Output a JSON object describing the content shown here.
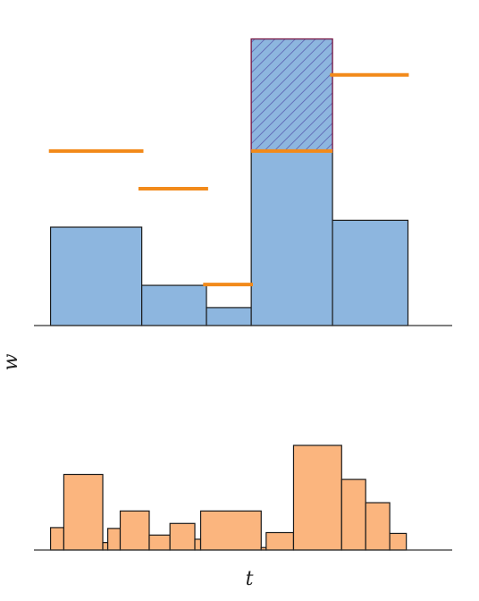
{
  "colors": {
    "top_bar_fill": "#8db6df",
    "hatch": "#5a5fb0",
    "hatch_border": "#7a1f4a",
    "level_line": "#f28a1a",
    "bottom_bar_fill": "#fbb57e",
    "edge": "#1a1a1a",
    "axis": "#333333"
  },
  "chart_data": [
    {
      "type": "bar",
      "variable_width": true,
      "ylabel": "w",
      "xlim": [
        0,
        500
      ],
      "ylim": [
        0,
        345
      ],
      "bars": [
        {
          "x0": 20,
          "x1": 130,
          "value": 115
        },
        {
          "x0": 130,
          "x1": 208,
          "value": 47
        },
        {
          "x0": 208,
          "x1": 262,
          "value": 21
        },
        {
          "x0": 262,
          "x1": 360,
          "value": 204
        },
        {
          "x0": 360,
          "x1": 451,
          "value": 123
        }
      ],
      "hatched_excess": {
        "x0": 262,
        "x1": 360,
        "from": 204,
        "to": 335
      },
      "level_lines": [
        {
          "x0": 18,
          "x1": 132,
          "value": 204
        },
        {
          "x0": 126,
          "x1": 210,
          "value": 160
        },
        {
          "x0": 204,
          "x1": 264,
          "value": 48
        },
        {
          "x0": 262,
          "x1": 360,
          "value": 204
        },
        {
          "x0": 357,
          "x1": 452,
          "value": 293
        }
      ]
    },
    {
      "type": "bar",
      "variable_width": true,
      "xlabel": "t",
      "xlim": [
        0,
        500
      ],
      "ylim": [
        0,
        140
      ],
      "bars": [
        {
          "x0": 20,
          "x1": 36,
          "value": 27
        },
        {
          "x0": 36,
          "x1": 83,
          "value": 91
        },
        {
          "x0": 83,
          "x1": 89,
          "value": 9
        },
        {
          "x0": 89,
          "x1": 104,
          "value": 26
        },
        {
          "x0": 104,
          "x1": 139,
          "value": 47
        },
        {
          "x0": 139,
          "x1": 164,
          "value": 18
        },
        {
          "x0": 164,
          "x1": 194,
          "value": 32
        },
        {
          "x0": 194,
          "x1": 201,
          "value": 13
        },
        {
          "x0": 201,
          "x1": 274,
          "value": 47
        },
        {
          "x0": 274,
          "x1": 280,
          "value": 3
        },
        {
          "x0": 280,
          "x1": 313,
          "value": 21
        },
        {
          "x0": 313,
          "x1": 371,
          "value": 126
        },
        {
          "x0": 371,
          "x1": 400,
          "value": 85
        },
        {
          "x0": 400,
          "x1": 429,
          "value": 57
        },
        {
          "x0": 429,
          "x1": 449,
          "value": 20
        }
      ]
    }
  ]
}
